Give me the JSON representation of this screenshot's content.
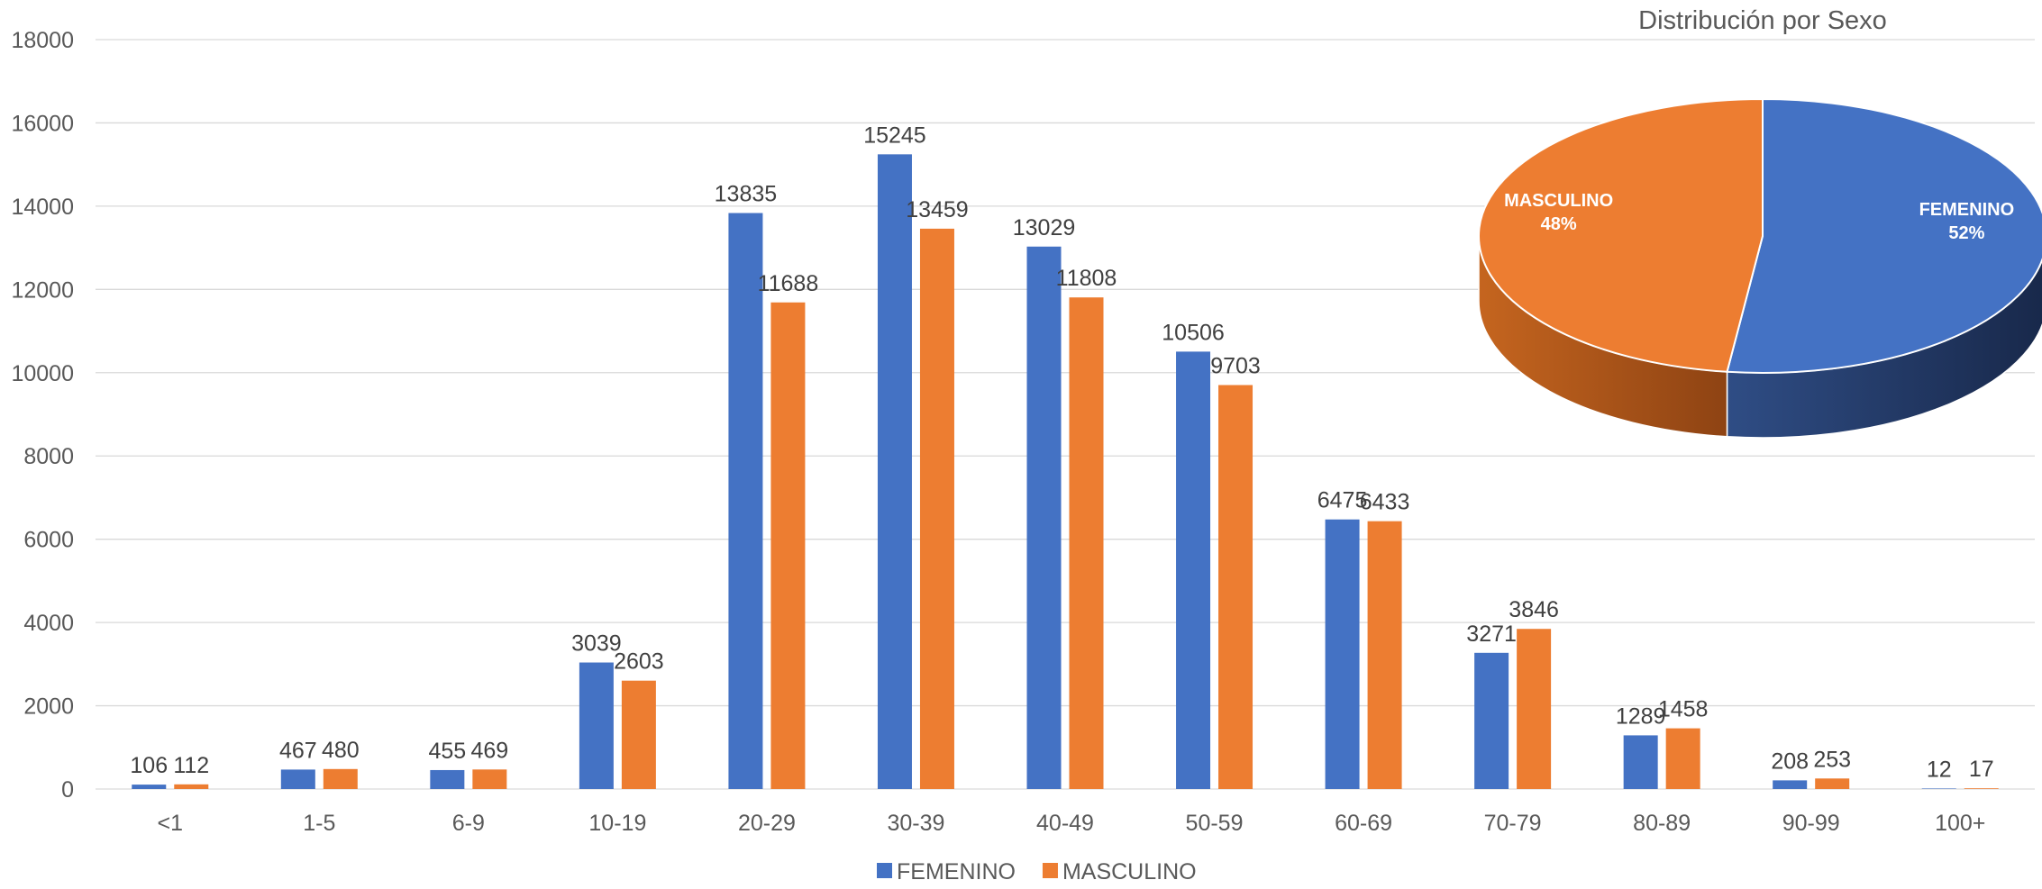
{
  "chart_data": [
    {
      "type": "bar",
      "categories": [
        "<1",
        "1-5",
        "6-9",
        "10-19",
        "20-29",
        "30-39",
        "40-49",
        "50-59",
        "60-69",
        "70-79",
        "80-89",
        "90-99",
        "100+"
      ],
      "series": [
        {
          "name": "FEMENINO",
          "color": "#4472C4",
          "values": [
            106,
            467,
            455,
            3039,
            13835,
            15245,
            13029,
            10506,
            6475,
            3271,
            1289,
            208,
            12
          ]
        },
        {
          "name": "MASCULINO",
          "color": "#ED7D31",
          "values": [
            112,
            480,
            469,
            2603,
            11688,
            13459,
            11808,
            9703,
            6433,
            3846,
            1458,
            253,
            17
          ]
        }
      ],
      "ylim": [
        0,
        18000
      ],
      "yticks": [
        0,
        2000,
        4000,
        6000,
        8000,
        10000,
        12000,
        14000,
        16000,
        18000
      ],
      "grid": true,
      "legend_position": "bottom",
      "data_labels": true
    },
    {
      "type": "pie",
      "title": "Distribución por Sexo",
      "slices": [
        {
          "label": "FEMENINO",
          "percent_label": "52%",
          "value": 52,
          "color": "#4472C4"
        },
        {
          "label": "MASCULINO",
          "percent_label": "48%",
          "value": 48,
          "color": "#ED7D31"
        }
      ],
      "style": "3d"
    }
  ],
  "colors": {
    "grid": "#D9D9D9",
    "axis_text": "#595959",
    "label_text": "#404040",
    "title_text": "#595959"
  }
}
